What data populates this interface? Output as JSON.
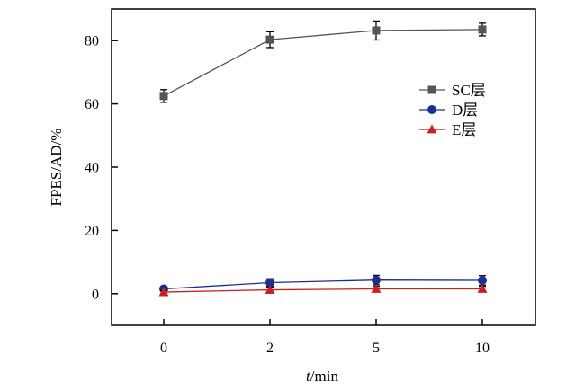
{
  "chart_data": {
    "type": "line",
    "categories": [
      "0",
      "2",
      "5",
      "10"
    ],
    "xlabel_italic": "t",
    "xlabel_rest": "/min",
    "ylabel": "FPES/AD/%",
    "ylim": [
      -10,
      90
    ],
    "yticks": [
      0,
      20,
      40,
      60,
      80
    ],
    "grid": false,
    "legend_position": "right",
    "series": [
      {
        "name": "SC层",
        "color": "#555555",
        "marker": "square",
        "values": [
          62.5,
          80.3,
          83.2,
          83.5
        ],
        "errors": [
          2.0,
          2.5,
          3.0,
          2.0
        ]
      },
      {
        "name": "D层",
        "color": "#1a2f8f",
        "marker": "circle",
        "values": [
          1.5,
          3.5,
          4.3,
          4.2
        ],
        "errors": [
          0.8,
          1.2,
          1.5,
          1.5
        ]
      },
      {
        "name": "E层",
        "color": "#cc1f1f",
        "marker": "triangle",
        "values": [
          0.5,
          1.2,
          1.5,
          1.5
        ],
        "errors": [
          0.5,
          0.8,
          0.8,
          0.8
        ]
      }
    ]
  }
}
